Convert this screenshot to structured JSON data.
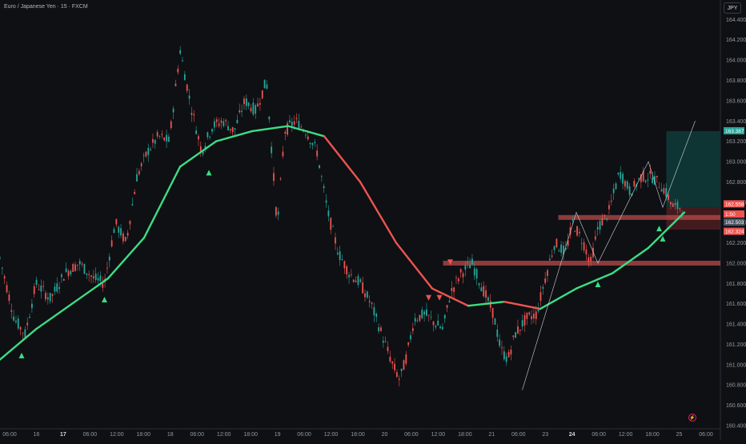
{
  "header": {
    "symbol_title": "Euro / Japanese Yen · 15 · FXCM",
    "currency": "JPY"
  },
  "colors": {
    "background": "#0e1014",
    "bull_line": "#3ddc84",
    "bear_line": "#ef5350",
    "candle_up": "#26a69a",
    "candle_down": "#ef5350",
    "zone": "#b84a4a",
    "target_box": "#0f3b3a"
  },
  "price_labels": [
    {
      "value": "163.387",
      "color": "#26a69a"
    },
    {
      "value": "162.558",
      "color": "#ef5350"
    },
    {
      "value": "1:50",
      "color": "#ef5350"
    },
    {
      "value": "162.503",
      "color": "#4b5563"
    },
    {
      "value": "162.324",
      "color": "#ef5350"
    }
  ],
  "icons": {
    "alert": "bolt-icon"
  },
  "chart_data": {
    "type": "candlestick",
    "title": "Euro / Japanese Yen · 15 · FXCM",
    "ylim": [
      160.4,
      164.45
    ],
    "y_ticks": [
      160.4,
      160.6,
      160.8,
      161.0,
      161.2,
      161.4,
      161.6,
      161.8,
      162.0,
      162.2,
      162.4,
      162.6,
      162.8,
      163.0,
      163.2,
      163.4,
      163.6,
      163.8,
      164.0,
      164.2,
      164.4
    ],
    "x_ticks": [
      {
        "label": "06:00",
        "bold": false
      },
      {
        "label": "16",
        "bold": false
      },
      {
        "label": "17",
        "bold": true
      },
      {
        "label": "06:00",
        "bold": false
      },
      {
        "label": "12:00",
        "bold": false
      },
      {
        "label": "18:00",
        "bold": false
      },
      {
        "label": "18",
        "bold": false
      },
      {
        "label": "06:00",
        "bold": false
      },
      {
        "label": "12:00",
        "bold": false
      },
      {
        "label": "18:00",
        "bold": false
      },
      {
        "label": "19",
        "bold": false
      },
      {
        "label": "06:00",
        "bold": false
      },
      {
        "label": "12:00",
        "bold": false
      },
      {
        "label": "18:00",
        "bold": false
      },
      {
        "label": "20",
        "bold": false
      },
      {
        "label": "06:00",
        "bold": false
      },
      {
        "label": "12:00",
        "bold": false
      },
      {
        "label": "18:00",
        "bold": false
      },
      {
        "label": "21",
        "bold": false
      },
      {
        "label": "06:00",
        "bold": false
      },
      {
        "label": "23",
        "bold": false
      },
      {
        "label": "24",
        "bold": true
      },
      {
        "label": "06:00",
        "bold": false
      },
      {
        "label": "12:00",
        "bold": false
      },
      {
        "label": "18:00",
        "bold": false
      },
      {
        "label": "25",
        "bold": false
      },
      {
        "label": "06:00",
        "bold": false
      }
    ],
    "price_path": [
      [
        0,
        162.05
      ],
      [
        0.02,
        161.45
      ],
      [
        0.035,
        161.3
      ],
      [
        0.05,
        161.8
      ],
      [
        0.07,
        161.65
      ],
      [
        0.09,
        161.9
      ],
      [
        0.11,
        162.0
      ],
      [
        0.13,
        161.85
      ],
      [
        0.145,
        161.8
      ],
      [
        0.16,
        162.4
      ],
      [
        0.175,
        162.2
      ],
      [
        0.19,
        162.85
      ],
      [
        0.205,
        163.1
      ],
      [
        0.22,
        163.25
      ],
      [
        0.235,
        163.2
      ],
      [
        0.25,
        164.1
      ],
      [
        0.265,
        163.55
      ],
      [
        0.28,
        163.1
      ],
      [
        0.295,
        163.35
      ],
      [
        0.31,
        163.4
      ],
      [
        0.325,
        163.3
      ],
      [
        0.34,
        163.6
      ],
      [
        0.355,
        163.5
      ],
      [
        0.37,
        163.8
      ],
      [
        0.385,
        162.35
      ],
      [
        0.395,
        163.3
      ],
      [
        0.41,
        163.4
      ],
      [
        0.425,
        163.3
      ],
      [
        0.44,
        163.1
      ],
      [
        0.455,
        162.5
      ],
      [
        0.47,
        162.1
      ],
      [
        0.485,
        161.9
      ],
      [
        0.5,
        161.8
      ],
      [
        0.515,
        161.6
      ],
      [
        0.53,
        161.3
      ],
      [
        0.545,
        161.0
      ],
      [
        0.555,
        160.85
      ],
      [
        0.565,
        161.1
      ],
      [
        0.575,
        161.45
      ],
      [
        0.59,
        161.5
      ],
      [
        0.605,
        161.4
      ],
      [
        0.615,
        161.35
      ],
      [
        0.625,
        161.7
      ],
      [
        0.64,
        161.9
      ],
      [
        0.655,
        162.0
      ],
      [
        0.67,
        161.75
      ],
      [
        0.685,
        161.5
      ],
      [
        0.695,
        161.15
      ],
      [
        0.705,
        161.05
      ],
      [
        0.715,
        161.3
      ],
      [
        0.73,
        161.45
      ],
      [
        0.745,
        161.5
      ],
      [
        0.755,
        161.8
      ],
      [
        0.77,
        162.2
      ],
      [
        0.785,
        162.1
      ],
      [
        0.795,
        162.4
      ],
      [
        0.81,
        162.2
      ],
      [
        0.82,
        162.0
      ],
      [
        0.83,
        162.35
      ],
      [
        0.845,
        162.5
      ],
      [
        0.86,
        162.9
      ],
      [
        0.875,
        162.7
      ],
      [
        0.89,
        162.85
      ],
      [
        0.905,
        162.85
      ],
      [
        0.92,
        162.75
      ],
      [
        0.935,
        162.55
      ],
      [
        0.95,
        162.55
      ]
    ],
    "ma_path": [
      {
        "x": 0,
        "y": 161.05,
        "trend": "up"
      },
      {
        "x": 0.05,
        "y": 161.35,
        "trend": "up"
      },
      {
        "x": 0.1,
        "y": 161.6,
        "trend": "up"
      },
      {
        "x": 0.15,
        "y": 161.85,
        "trend": "up"
      },
      {
        "x": 0.2,
        "y": 162.25,
        "trend": "up"
      },
      {
        "x": 0.25,
        "y": 162.95,
        "trend": "up"
      },
      {
        "x": 0.3,
        "y": 163.2,
        "trend": "up"
      },
      {
        "x": 0.35,
        "y": 163.3,
        "trend": "up"
      },
      {
        "x": 0.4,
        "y": 163.35,
        "trend": "up"
      },
      {
        "x": 0.45,
        "y": 163.25,
        "trend": "down"
      },
      {
        "x": 0.5,
        "y": 162.8,
        "trend": "down"
      },
      {
        "x": 0.55,
        "y": 162.2,
        "trend": "down"
      },
      {
        "x": 0.6,
        "y": 161.75,
        "trend": "down"
      },
      {
        "x": 0.65,
        "y": 161.58,
        "trend": "up"
      },
      {
        "x": 0.7,
        "y": 161.62,
        "trend": "down"
      },
      {
        "x": 0.75,
        "y": 161.55,
        "trend": "up"
      },
      {
        "x": 0.8,
        "y": 161.75,
        "trend": "up"
      },
      {
        "x": 0.85,
        "y": 161.9,
        "trend": "up"
      },
      {
        "x": 0.9,
        "y": 162.15,
        "trend": "up"
      },
      {
        "x": 0.95,
        "y": 162.5,
        "trend": "up"
      }
    ],
    "buy_signals": [
      {
        "x": 0.03,
        "y": 161.15
      },
      {
        "x": 0.145,
        "y": 161.7
      },
      {
        "x": 0.29,
        "y": 162.95
      },
      {
        "x": 0.83,
        "y": 161.85
      },
      {
        "x": 0.915,
        "y": 162.4
      },
      {
        "x": 0.92,
        "y": 162.3
      }
    ],
    "sell_signals": [
      {
        "x": 0.595,
        "y": 161.6
      },
      {
        "x": 0.61,
        "y": 161.6
      },
      {
        "x": 0.625,
        "y": 161.95
      }
    ],
    "zones": [
      {
        "x0": 0.615,
        "x1": 1.0,
        "y": 162.0
      },
      {
        "x0": 0.775,
        "x1": 1.0,
        "y": 162.45
      }
    ],
    "target_box": {
      "x0": 0.925,
      "x1": 1.0,
      "y0": 162.55,
      "y1": 163.3
    },
    "stop_box": {
      "x0": 0.925,
      "x1": 1.0,
      "y0": 162.33,
      "y1": 162.55
    }
  }
}
